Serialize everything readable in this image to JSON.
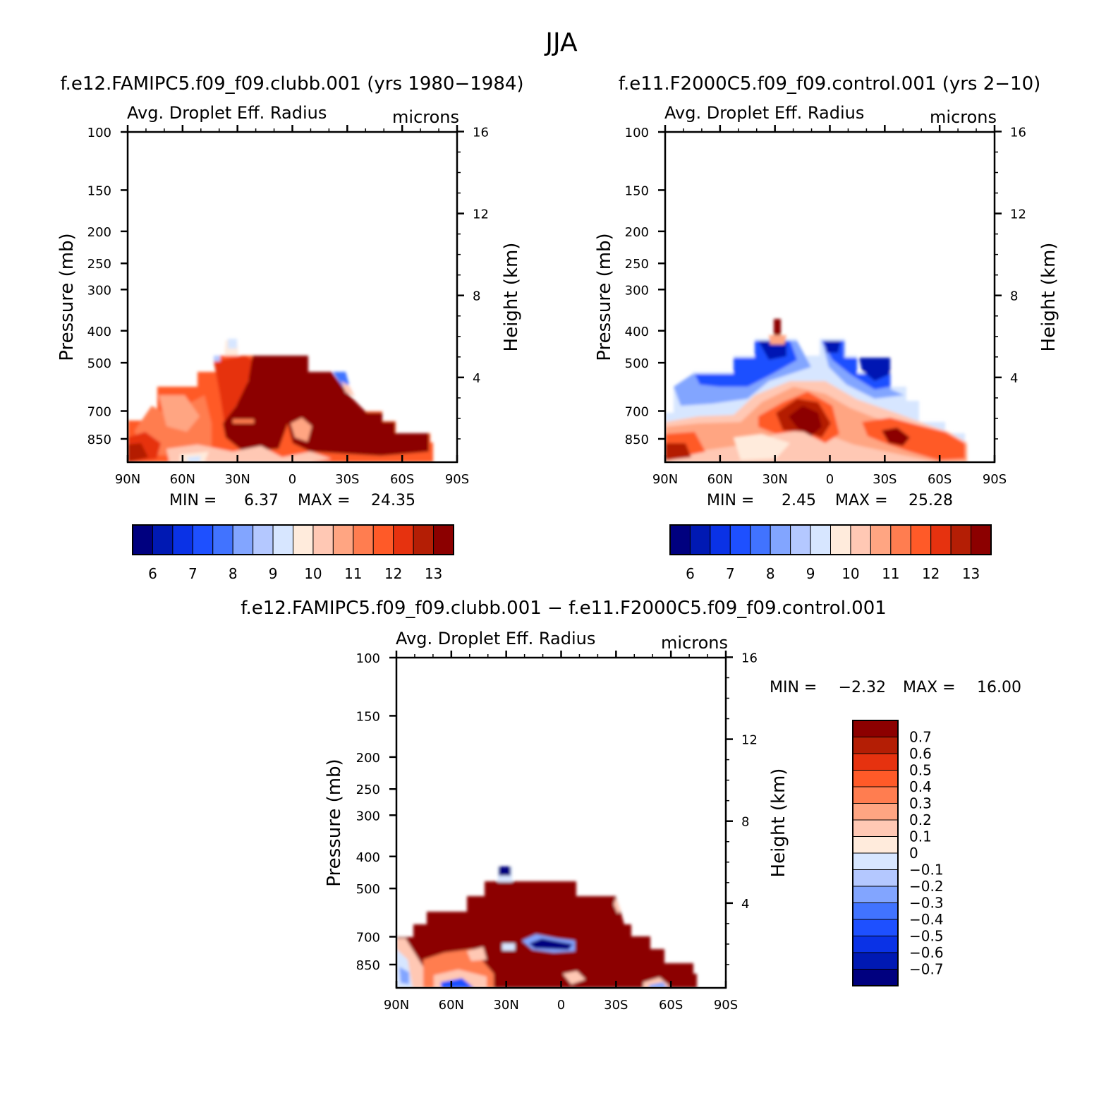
{
  "page_title": "JJA",
  "chart_data": [
    {
      "type": "contour",
      "id": "clubb",
      "title": "f.e12.FAMIPC5.f09_f09.clubb.001 (yrs 1980−1984)",
      "subtitle": "Avg. Droplet Eff. Radius",
      "units": "microns",
      "ylabel": "Pressure (mb)",
      "y2label": "Height (km)",
      "xticks": [
        "90N",
        "60N",
        "30N",
        "0",
        "30S",
        "60S",
        "90S"
      ],
      "xlim": [
        90,
        -90
      ],
      "ypressure_ticks": [
        100,
        150,
        200,
        250,
        300,
        400,
        500,
        700,
        850
      ],
      "ylim": [
        1000,
        100
      ],
      "yheight_ticks": [
        16,
        12,
        8,
        4
      ],
      "min_label": "MIN =",
      "min_value": "6.37",
      "max_label": "MAX =",
      "max_value": "24.35",
      "colorbar_ticks": [
        "6",
        "7",
        "8",
        "9",
        "10",
        "11",
        "12",
        "13"
      ]
    },
    {
      "type": "contour",
      "id": "control",
      "title": "f.e11.F2000C5.f09_f09.control.001 (yrs 2−10)",
      "subtitle": "Avg. Droplet Eff. Radius",
      "units": "microns",
      "ylabel": "Pressure (mb)",
      "y2label": "Height (km)",
      "xticks": [
        "90N",
        "60N",
        "30N",
        "0",
        "30S",
        "60S",
        "90S"
      ],
      "xlim": [
        90,
        -90
      ],
      "ypressure_ticks": [
        100,
        150,
        200,
        250,
        300,
        400,
        500,
        700,
        850
      ],
      "ylim": [
        1000,
        100
      ],
      "yheight_ticks": [
        16,
        12,
        8,
        4
      ],
      "min_label": "MIN =",
      "min_value": "2.45",
      "max_label": "MAX =",
      "max_value": "25.28",
      "colorbar_ticks": [
        "6",
        "7",
        "8",
        "9",
        "10",
        "11",
        "12",
        "13"
      ]
    },
    {
      "type": "contour",
      "id": "diff",
      "title": "f.e12.FAMIPC5.f09_f09.clubb.001 − f.e11.F2000C5.f09_f09.control.001",
      "subtitle": "Avg. Droplet Eff. Radius",
      "units": "microns",
      "ylabel": "Pressure (mb)",
      "y2label": "Height (km)",
      "xticks": [
        "90N",
        "60N",
        "30N",
        "0",
        "30S",
        "60S",
        "90S"
      ],
      "xlim": [
        90,
        -90
      ],
      "ypressure_ticks": [
        100,
        150,
        200,
        250,
        300,
        400,
        500,
        700,
        850
      ],
      "ylim": [
        1000,
        100
      ],
      "yheight_ticks": [
        16,
        12,
        8,
        4
      ],
      "min_label": "MIN =",
      "min_value": "−2.32",
      "max_label": "MAX =",
      "max_value": "16.00",
      "colorbar_ticks": [
        "0.7",
        "0.6",
        "0.5",
        "0.4",
        "0.3",
        "0.2",
        "0.1",
        "0",
        "−0.1",
        "−0.2",
        "−0.3",
        "−0.4",
        "−0.5",
        "−0.6",
        "−0.7"
      ]
    }
  ],
  "palette": [
    "#00007f",
    "#0019b3",
    "#0a32e6",
    "#1e50ff",
    "#4173ff",
    "#82a5ff",
    "#b4c8ff",
    "#d7e6ff",
    "#ffebdc",
    "#ffc8b4",
    "#ffa582",
    "#ff7d50",
    "#ff5a28",
    "#e6320f",
    "#b41e05",
    "#8c0000"
  ]
}
